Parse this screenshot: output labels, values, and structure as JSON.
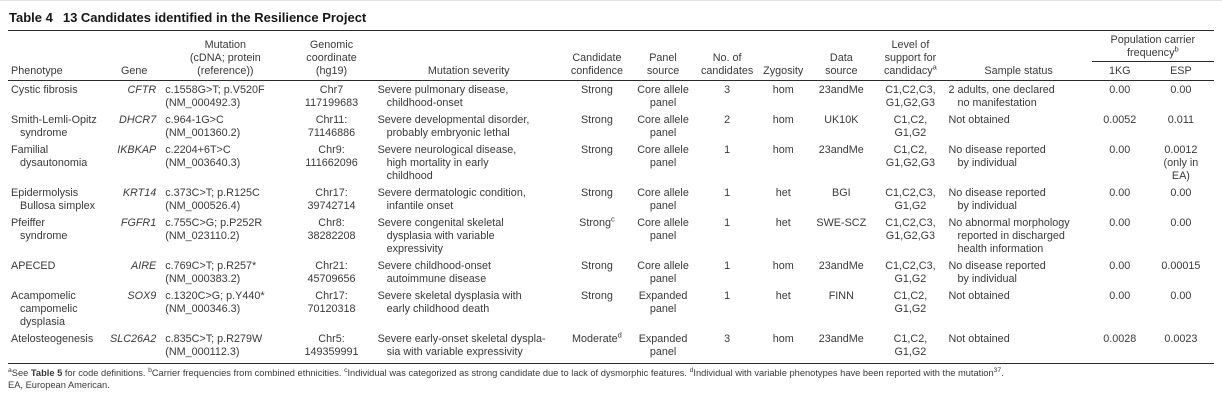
{
  "title": {
    "label": "Table 4",
    "caption": "13 Candidates identified in the Resilience Project"
  },
  "header": {
    "phenotype": "Phenotype",
    "gene": "Gene",
    "mutation": "Mutation\n(cDNA; protein\n(reference))",
    "coordinate": "Genomic\ncoordinate\n(hg19)",
    "severity": "Mutation severity",
    "confidence": "Candidate\nconfidence",
    "panel": "Panel\nsource",
    "candidates": "No. of\ncandidates",
    "zygosity": "Zygosity",
    "data_source": "Data\nsource",
    "support": "Level of\nsupport for\ncandidacy",
    "support_sup": "a",
    "sample_status": "Sample status",
    "pop_freq": "Population carrier\nfrequency",
    "pop_freq_sup": "b",
    "kg": "1KG",
    "esp": "ESP"
  },
  "rows": [
    {
      "phenotype": "Cystic fibrosis",
      "gene": "CFTR",
      "mutation": "c.1558G>T; p.V520F\n(NM_000492.3)",
      "coordinate": "Chr7\n117199683",
      "severity": "Severe pulmonary disease,\nchildhood-onset",
      "confidence": "Strong",
      "confidence_sup": "",
      "panel": "Core allele\npanel",
      "candidates": "3",
      "zygosity": "hom",
      "data_source": "23andMe",
      "support": "C1,C2,C3,\nG1,G2,G3",
      "sample_status": "2 adults, one declared\nno manifestation",
      "kg": "0.00",
      "esp": "0.00"
    },
    {
      "phenotype": "Smith-Lemli-Opitz\nsyndrome",
      "gene": "DHCR7",
      "mutation": "c.964-1G>C\n(NM_001360.2)",
      "coordinate": "Chr11:\n71146886",
      "severity": "Severe developmental disorder,\nprobably embryonic lethal",
      "confidence": "Strong",
      "confidence_sup": "",
      "panel": "Core allele\npanel",
      "candidates": "2",
      "zygosity": "hom",
      "data_source": "UK10K",
      "support": "C1,C2,\nG1,G2",
      "sample_status": "Not obtained",
      "kg": "0.0052",
      "esp": "0.011"
    },
    {
      "phenotype": "Familial\ndysautonomia",
      "gene": "IKBKAP",
      "mutation": "c.2204+6T>C\n(NM_003640.3)",
      "coordinate": "Chr9:\n111662096",
      "severity": "Severe neurological disease,\nhigh mortality in early\nchildhood",
      "confidence": "Strong",
      "confidence_sup": "",
      "panel": "Core allele\npanel",
      "candidates": "1",
      "zygosity": "hom",
      "data_source": "23andMe",
      "support": "C1,C2,\nG1,G2,G3",
      "sample_status": "No disease reported\nby individual",
      "kg": "0.00",
      "esp": "0.0012\n(only in\nEA)"
    },
    {
      "phenotype": "Epidermolysis\nBullosa simplex",
      "gene": "KRT14",
      "mutation": "c.373C>T; p.R125C\n(NM_000526.4)",
      "coordinate": "Chr17:\n39742714",
      "severity": "Severe dermatologic condition,\ninfantile onset",
      "confidence": "Strong",
      "confidence_sup": "",
      "panel": "Core allele\npanel",
      "candidates": "1",
      "zygosity": "het",
      "data_source": "BGI",
      "support": "C1,C2,C3,\nG1,G2",
      "sample_status": "No disease reported\nby individual",
      "kg": "0.00",
      "esp": "0.00"
    },
    {
      "phenotype": "Pfeiffer\nsyndrome",
      "gene": "FGFR1",
      "mutation": "c.755C>G; p.P252R\n(NM_023110.2)",
      "coordinate": "Chr8:\n38282208",
      "severity": "Severe congenital skeletal\ndysplasia with variable\nexpressivity",
      "confidence": "Strong",
      "confidence_sup": "c",
      "panel": "Core allele\npanel",
      "candidates": "1",
      "zygosity": "het",
      "data_source": "SWE-SCZ",
      "support": "C1,C2,C3,\nG1,G2,G3",
      "sample_status": "No abnormal morphology\nreported in discharged\nhealth information",
      "kg": "0.00",
      "esp": "0.00"
    },
    {
      "phenotype": "APECED",
      "gene": "AIRE",
      "mutation": "c.769C>T; p.R257*\n(NM_000383.2)",
      "coordinate": "Chr21:\n45709656",
      "severity": "Severe childhood-onset\nautoimmune disease",
      "confidence": "Strong",
      "confidence_sup": "",
      "panel": "Core allele\npanel",
      "candidates": "1",
      "zygosity": "hom",
      "data_source": "23andMe",
      "support": "C1,C2,C3,\nG1,G2",
      "sample_status": "No disease reported\nby individual",
      "kg": "0.00",
      "esp": "0.00015"
    },
    {
      "phenotype": "Acampomelic\ncampomelic\ndysplasia",
      "gene": "SOX9",
      "mutation": "c.1320C>G; p.Y440*\n(NM_000346.3)",
      "coordinate": "Chr17:\n70120318",
      "severity": "Severe skeletal dysplasia with\nearly childhood death",
      "confidence": "Strong",
      "confidence_sup": "",
      "panel": "Expanded\npanel",
      "candidates": "1",
      "zygosity": "het",
      "data_source": "FINN",
      "support": "C1,C2,\nG1,G2",
      "sample_status": "Not obtained",
      "kg": "0.00",
      "esp": "0.00"
    },
    {
      "phenotype": "Atelosteogenesis",
      "gene": "SLC26A2",
      "mutation": "c.835C>T; p.R279W\n(NM_000112.3)",
      "coordinate": "Chr5:\n149359991",
      "severity": "Severe early-onset skeletal dyspla-\nsia with variable expressivity",
      "confidence": "Moderate",
      "confidence_sup": "d",
      "panel": "Expanded\npanel",
      "candidates": "3",
      "zygosity": "hom",
      "data_source": "23andMe",
      "support": "C1,C2,\nG1,G2",
      "sample_status": "Not obtained",
      "kg": "0.0028",
      "esp": "0.0023"
    }
  ],
  "footnotes": {
    "line1": [
      {
        "k": "sup",
        "v": "a"
      },
      {
        "k": "t",
        "v": "See "
      },
      {
        "k": "b",
        "v": "Table 5"
      },
      {
        "k": "t",
        "v": " for code definitions. "
      },
      {
        "k": "sup",
        "v": "b"
      },
      {
        "k": "t",
        "v": "Carrier frequencies from combined ethnicities. "
      },
      {
        "k": "sup",
        "v": "c"
      },
      {
        "k": "t",
        "v": "Individual was categorized as strong candidate due to lack of dysmorphic features. "
      },
      {
        "k": "sup",
        "v": "d"
      },
      {
        "k": "t",
        "v": "Individual with variable phenotypes have been reported with the mutation"
      },
      {
        "k": "sup",
        "v": "37"
      },
      {
        "k": "t",
        "v": "."
      }
    ],
    "line2": "EA, European American."
  }
}
